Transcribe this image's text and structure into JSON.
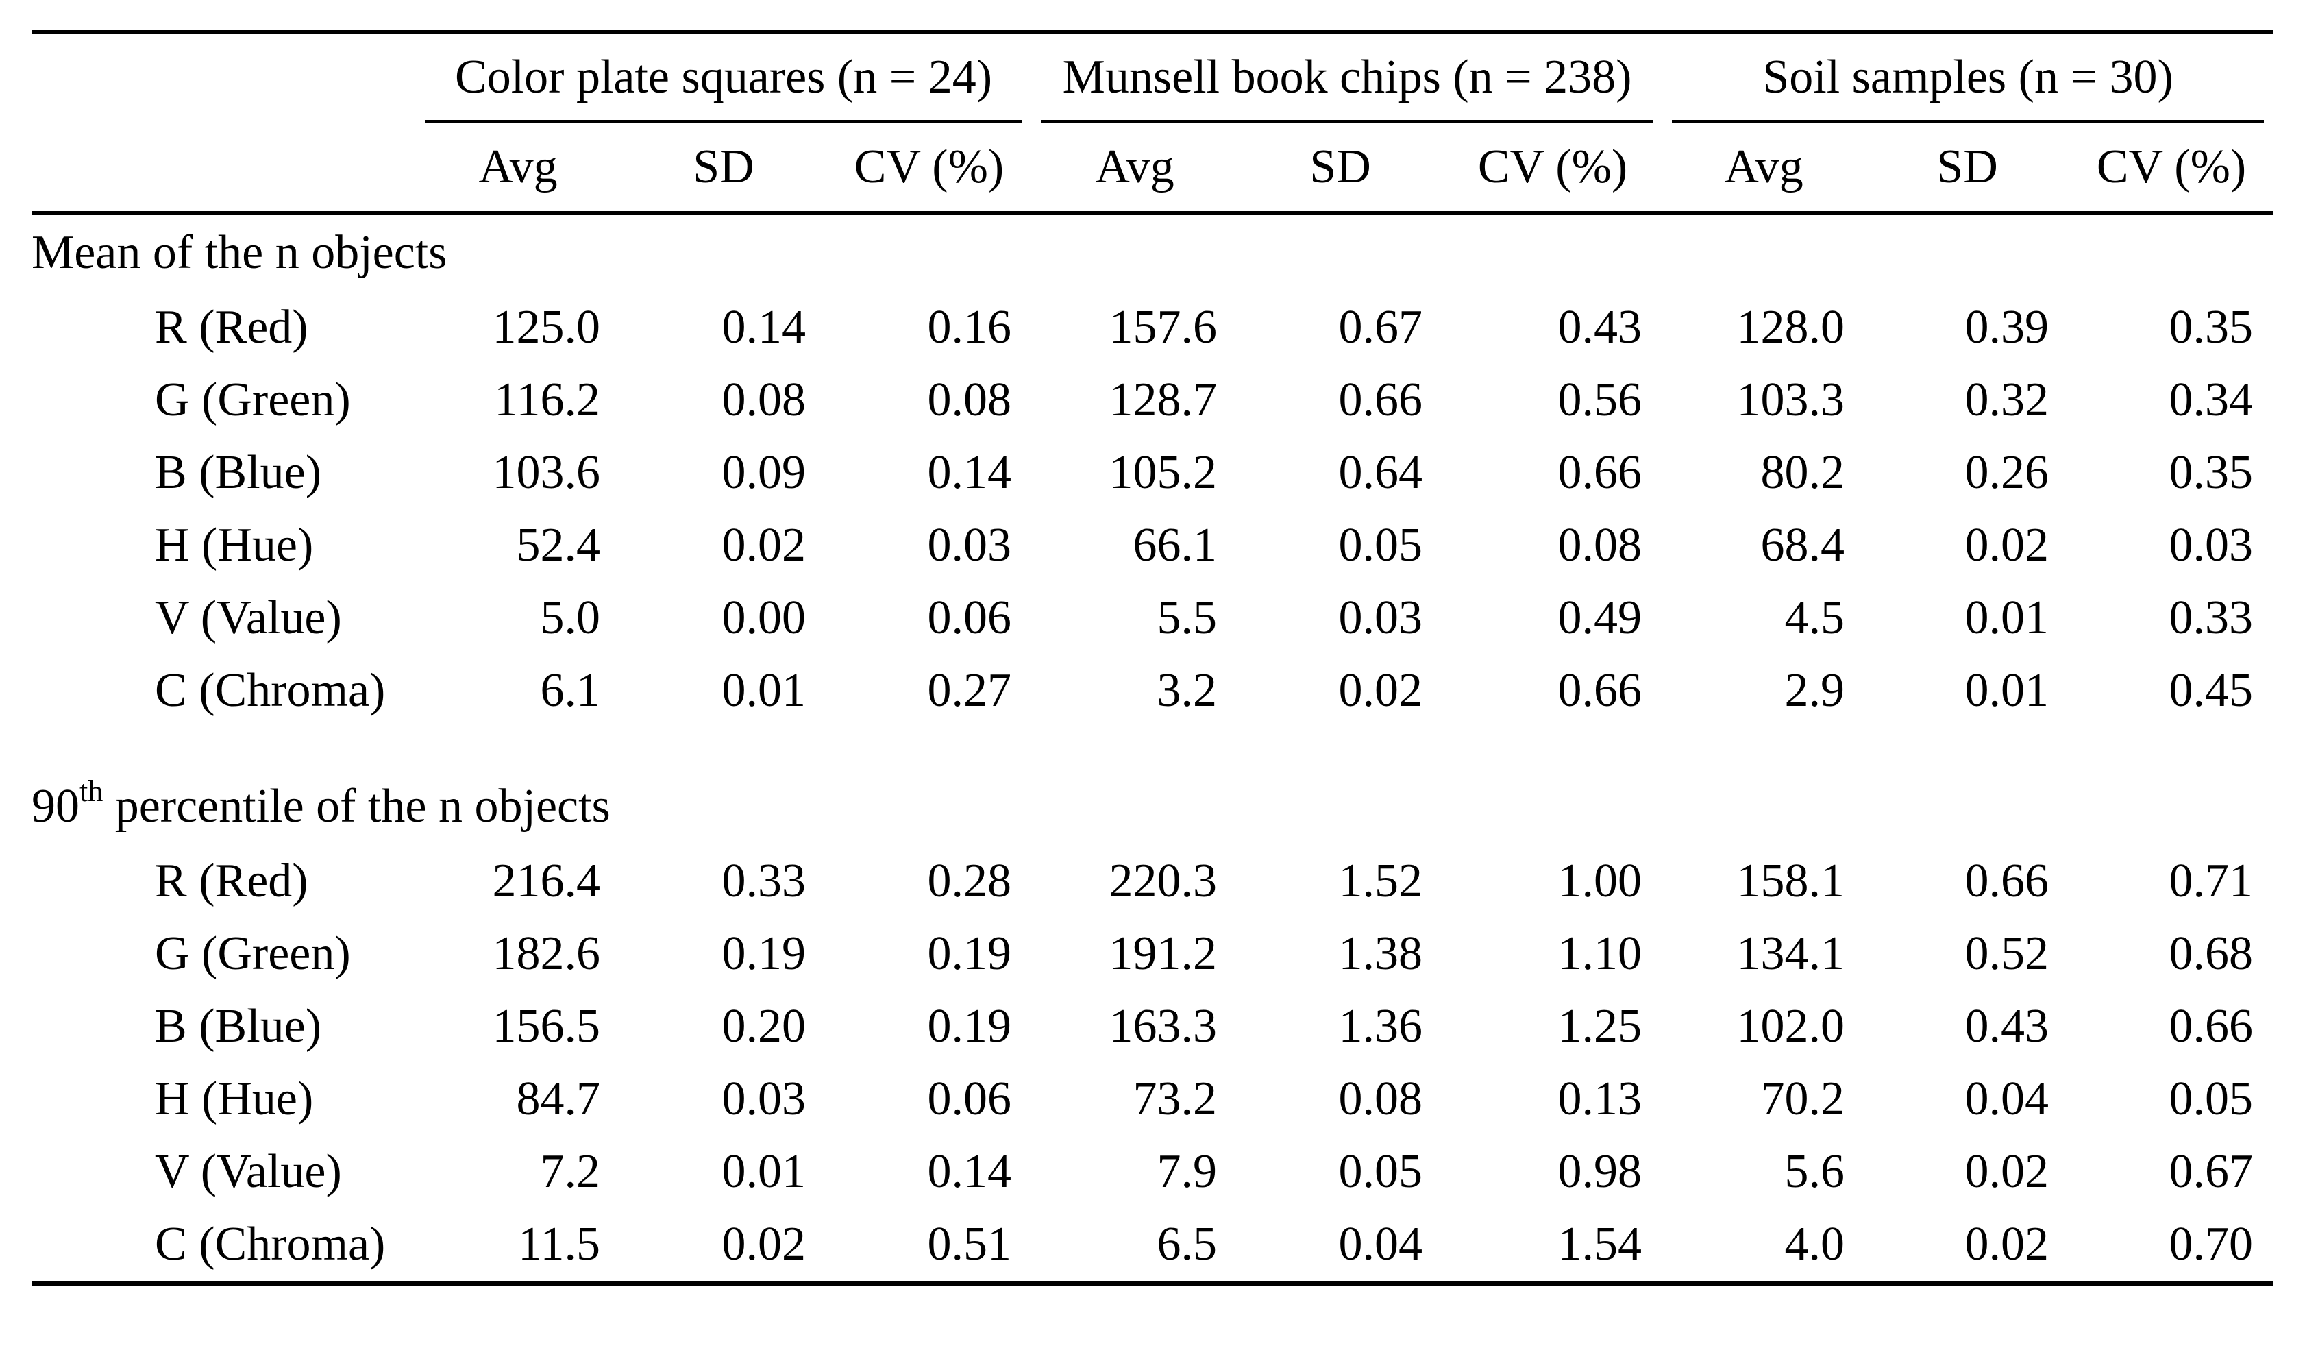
{
  "groups": [
    "Color plate squares (n = 24)",
    "Munsell book chips (n = 238)",
    "Soil samples (n = 30)"
  ],
  "subheaders": [
    "Avg",
    "SD",
    "CV (%)"
  ],
  "sections": [
    {
      "title_main": "Mean of the n objects",
      "title_sup": "",
      "title_rest": "",
      "rows": [
        {
          "label": "R (Red)",
          "values": [
            "125.0",
            "0.14",
            "0.16",
            "157.6",
            "0.67",
            "0.43",
            "128.0",
            "0.39",
            "0.35"
          ]
        },
        {
          "label": "G (Green)",
          "values": [
            "116.2",
            "0.08",
            "0.08",
            "128.7",
            "0.66",
            "0.56",
            "103.3",
            "0.32",
            "0.34"
          ]
        },
        {
          "label": "B (Blue)",
          "values": [
            "103.6",
            "0.09",
            "0.14",
            "105.2",
            "0.64",
            "0.66",
            "80.2",
            "0.26",
            "0.35"
          ]
        },
        {
          "label": "H (Hue)",
          "values": [
            "52.4",
            "0.02",
            "0.03",
            "66.1",
            "0.05",
            "0.08",
            "68.4",
            "0.02",
            "0.03"
          ]
        },
        {
          "label": "V (Value)",
          "values": [
            "5.0",
            "0.00",
            "0.06",
            "5.5",
            "0.03",
            "0.49",
            "4.5",
            "0.01",
            "0.33"
          ]
        },
        {
          "label": "C (Chroma)",
          "values": [
            "6.1",
            "0.01",
            "0.27",
            "3.2",
            "0.02",
            "0.66",
            "2.9",
            "0.01",
            "0.45"
          ]
        }
      ]
    },
    {
      "title_main": "90",
      "title_sup": "th",
      "title_rest": " percentile of the n objects",
      "rows": [
        {
          "label": "R (Red)",
          "values": [
            "216.4",
            "0.33",
            "0.28",
            "220.3",
            "1.52",
            "1.00",
            "158.1",
            "0.66",
            "0.71"
          ]
        },
        {
          "label": "G (Green)",
          "values": [
            "182.6",
            "0.19",
            "0.19",
            "191.2",
            "1.38",
            "1.10",
            "134.1",
            "0.52",
            "0.68"
          ]
        },
        {
          "label": "B (Blue)",
          "values": [
            "156.5",
            "0.20",
            "0.19",
            "163.3",
            "1.36",
            "1.25",
            "102.0",
            "0.43",
            "0.66"
          ]
        },
        {
          "label": "H (Hue)",
          "values": [
            "84.7",
            "0.03",
            "0.06",
            "73.2",
            "0.08",
            "0.13",
            "70.2",
            "0.04",
            "0.05"
          ]
        },
        {
          "label": "V (Value)",
          "values": [
            "7.2",
            "0.01",
            "0.14",
            "7.9",
            "0.05",
            "0.98",
            "5.6",
            "0.02",
            "0.67"
          ]
        },
        {
          "label": "C (Chroma)",
          "values": [
            "11.5",
            "0.02",
            "0.51",
            "6.5",
            "0.04",
            "1.54",
            "4.0",
            "0.02",
            "0.70"
          ]
        }
      ]
    }
  ]
}
